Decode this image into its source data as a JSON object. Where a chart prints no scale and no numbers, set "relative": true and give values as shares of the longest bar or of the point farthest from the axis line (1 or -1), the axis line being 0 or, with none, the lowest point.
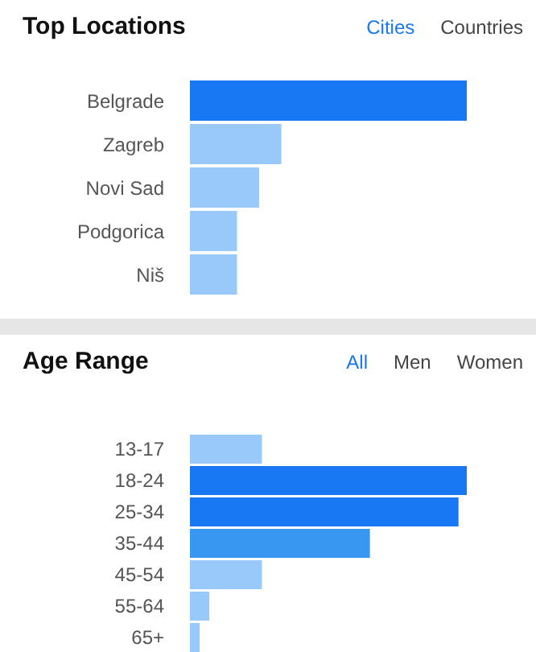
{
  "chart_data": [
    {
      "type": "bar",
      "orientation": "horizontal",
      "relative": true,
      "title": "Top Locations",
      "annotations": [
        "Cities",
        "Countries"
      ],
      "categories": [
        "Belgrade",
        "Zagreb",
        "Novi Sad",
        "Podgorica",
        "Niš"
      ],
      "values": [
        1,
        0.33,
        0.25,
        0.17,
        0.17
      ],
      "colors": [
        "#1877f2",
        "#99c9fa",
        "#99c9fa",
        "#99c9fa",
        "#99c9fa"
      ],
      "grid": false,
      "legend": false
    },
    {
      "type": "bar",
      "orientation": "horizontal",
      "relative": true,
      "title": "Age Range",
      "annotations": [
        "All",
        "Men",
        "Women"
      ],
      "categories": [
        "13-17",
        "18-24",
        "25-34",
        "35-44",
        "45-54",
        "55-64",
        "65+"
      ],
      "values": [
        0.26,
        1,
        0.97,
        0.65,
        0.26,
        0.07,
        0.035
      ],
      "colors": [
        "#99c9fa",
        "#1877f2",
        "#1877f2",
        "#3897f0",
        "#99c9fa",
        "#99c9fa",
        "#99c9fa"
      ],
      "grid": false,
      "legend": false
    }
  ]
}
